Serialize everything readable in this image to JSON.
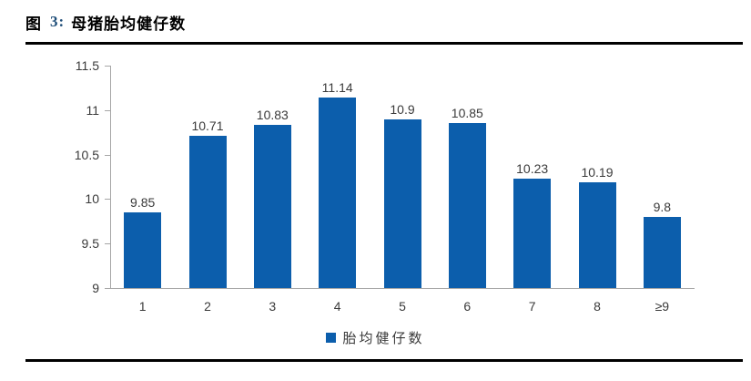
{
  "figure": {
    "label": "图",
    "number": "3:",
    "caption": "母猪胎均健仔数"
  },
  "colors": {
    "bar": "#0C5EAC",
    "axis": "#A6A6A6",
    "text": "#3A3A3A",
    "title_number": "#1F4E79",
    "rule": "#000000"
  },
  "chart_data": {
    "type": "bar",
    "title": "图 3: 母猪胎均健仔数",
    "categories": [
      "1",
      "2",
      "3",
      "4",
      "5",
      "6",
      "7",
      "8",
      "≥9"
    ],
    "values": [
      9.85,
      10.71,
      10.83,
      11.14,
      10.9,
      10.85,
      10.23,
      10.19,
      9.8
    ],
    "value_labels": [
      "9.85",
      "10.71",
      "10.83",
      "11.14",
      "10.9",
      "10.85",
      "10.23",
      "10.19",
      "9.8"
    ],
    "legend": "胎均健仔数",
    "legend_position": "bottom",
    "legend_swatch_icon": "square-icon",
    "xlabel": "",
    "ylabel": "",
    "ylim": [
      9,
      11.5
    ],
    "yticks": [
      9,
      9.5,
      10,
      10.5,
      11,
      11.5
    ],
    "ytick_labels": [
      "9",
      "9.5",
      "10",
      "10.5",
      "11",
      "11.5"
    ],
    "grid": false
  }
}
